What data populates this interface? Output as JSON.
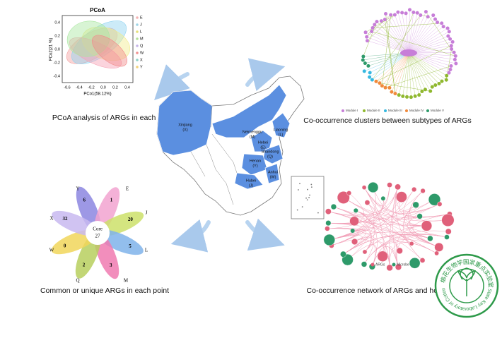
{
  "pcoa": {
    "title": "PCoA",
    "x_label": "PCo1(58.12%)",
    "y_label": "PCo2(21 %)",
    "xticks": [
      "-0.6",
      "-0.4",
      "-0.2",
      "0.0",
      "0.2",
      "0.4"
    ],
    "yticks": [
      "0.4",
      "0.2",
      "0.0",
      "-0.2",
      "-0.4"
    ],
    "legend": [
      "E",
      "J",
      "L",
      "M",
      "Q",
      "W",
      "X",
      "Y"
    ],
    "caption": "PCoA analysis of ARGs in each point"
  },
  "clusters": {
    "legend": [
      "Module I",
      "Module II",
      "Module III",
      "Module IV",
      "Module V"
    ],
    "caption": "Co-occurrence clusters between subtypes of ARGs"
  },
  "map": {
    "labels": [
      "Xinjiang",
      "(X)",
      "Neimenggu",
      "(M)",
      "Liaoning",
      "(L)",
      "Hebei",
      "(E)",
      "Shandong",
      "(Q)",
      "Henan",
      "(Y)",
      "Hubei",
      "(J)",
      "Anhui",
      "(W)"
    ]
  },
  "flower": {
    "center_title": "Core",
    "center_value": "27",
    "petals": [
      {
        "name": "Y",
        "count": "6"
      },
      {
        "name": "E",
        "count": "1"
      },
      {
        "name": "J",
        "count": "20"
      },
      {
        "name": "L",
        "count": "5"
      },
      {
        "name": "M",
        "count": "3"
      },
      {
        "name": "Q",
        "count": "2"
      },
      {
        "name": "W",
        "count": "0"
      },
      {
        "name": "X",
        "count": "32"
      }
    ],
    "caption": "Common or unique ARGs in each point"
  },
  "network": {
    "legend": [
      "ARGs",
      "Microbe"
    ],
    "caption": "Co-occurrence network of ARGs and host mic"
  },
  "stamp": {
    "chinese": "棉花生物学国家重点实验室",
    "english": "State Key Laboratory of Cotton Biology"
  }
}
